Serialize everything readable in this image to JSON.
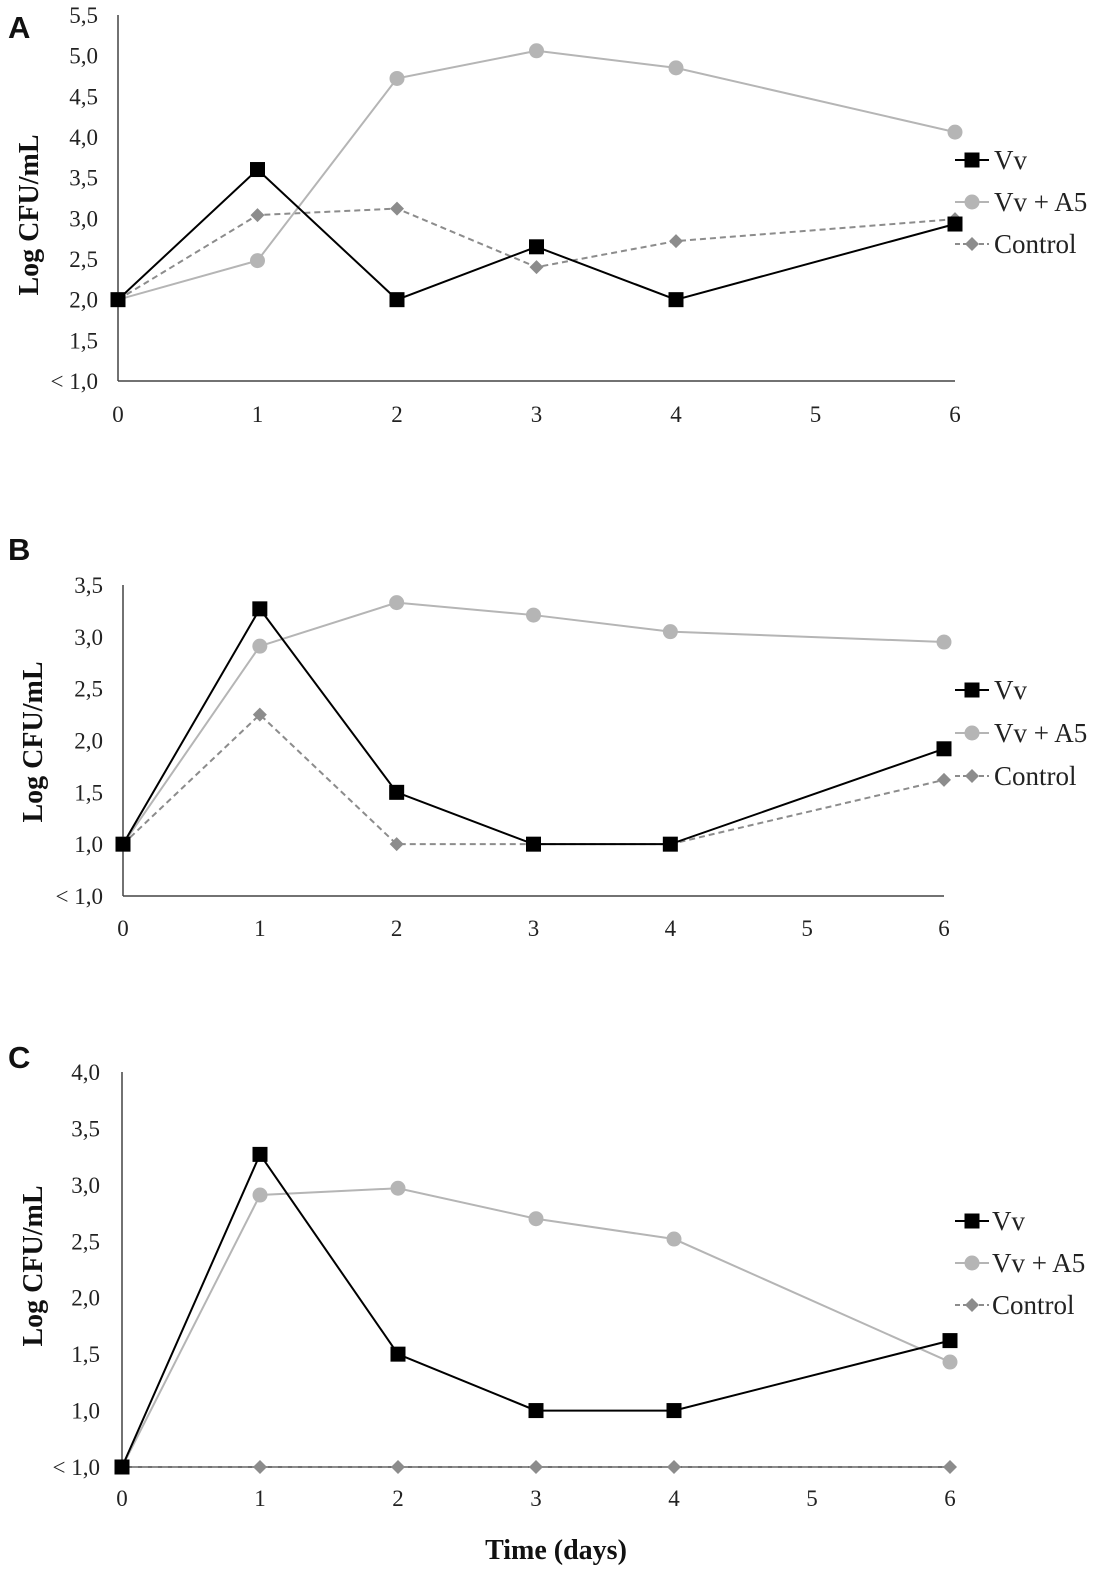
{
  "figure": {
    "xlabel": "Time (days)",
    "colors": {
      "vv": "#000000",
      "vv_a5": "#b5b5b5",
      "control": "#8c8c8c",
      "axis": "#444444"
    }
  },
  "chart_data": [
    {
      "type": "line",
      "panel": "A",
      "ylabel": "Log CFU/mL",
      "x_ticks": [
        "0",
        "1",
        "2",
        "3",
        "4",
        "5",
        "6"
      ],
      "y_ticks": [
        "< 1,0",
        "1,5",
        "2,0",
        "2,5",
        "3,0",
        "3,5",
        "4,0",
        "4,5",
        "5,0",
        "5,5"
      ],
      "xlim": [
        0,
        6
      ],
      "ylim": [
        1.0,
        5.5
      ],
      "legend_position": "right",
      "series": [
        {
          "name": "Vv",
          "marker": "square",
          "dashed": false,
          "x": [
            0,
            1,
            2,
            3,
            4,
            6
          ],
          "values": [
            2.0,
            3.6,
            2.0,
            2.65,
            2.0,
            2.93
          ]
        },
        {
          "name": "Vv + A5",
          "marker": "circle",
          "dashed": false,
          "x": [
            0,
            1,
            2,
            3,
            4,
            6
          ],
          "values": [
            2.0,
            2.48,
            4.72,
            5.06,
            4.85,
            4.06
          ]
        },
        {
          "name": "Control",
          "marker": "diamond",
          "dashed": true,
          "x": [
            0,
            1,
            2,
            3,
            4,
            6
          ],
          "values": [
            2.0,
            3.04,
            3.12,
            2.4,
            2.72,
            2.99
          ]
        }
      ]
    },
    {
      "type": "line",
      "panel": "B",
      "ylabel": "Log CFU/mL",
      "x_ticks": [
        "0",
        "1",
        "2",
        "3",
        "4",
        "5",
        "6"
      ],
      "y_ticks": [
        "< 1,0",
        "1,0",
        "1,5",
        "2,0",
        "2,5",
        "3,0",
        "3,5"
      ],
      "xlim": [
        0,
        6
      ],
      "ylim": [
        0.5,
        3.5
      ],
      "legend_position": "right",
      "series": [
        {
          "name": "Vv",
          "marker": "square",
          "dashed": false,
          "x": [
            0,
            1,
            2,
            3,
            4,
            6
          ],
          "values": [
            1.0,
            3.27,
            1.5,
            1.0,
            1.0,
            1.92
          ]
        },
        {
          "name": "Vv + A5",
          "marker": "circle",
          "dashed": false,
          "x": [
            0,
            1,
            2,
            3,
            4,
            6
          ],
          "values": [
            1.0,
            2.91,
            3.33,
            3.21,
            3.05,
            2.95
          ]
        },
        {
          "name": "Control",
          "marker": "diamond",
          "dashed": true,
          "x": [
            0,
            1,
            2,
            3,
            4,
            6
          ],
          "values": [
            1.0,
            2.25,
            1.0,
            1.0,
            1.0,
            1.62
          ]
        }
      ]
    },
    {
      "type": "line",
      "panel": "C",
      "ylabel": "Log CFU/mL",
      "x_ticks": [
        "0",
        "1",
        "2",
        "3",
        "4",
        "5",
        "6"
      ],
      "y_ticks": [
        "< 1,0",
        "1,0",
        "1,5",
        "2,0",
        "2,5",
        "3,0",
        "3,5",
        "4,0"
      ],
      "xlim": [
        0,
        6
      ],
      "ylim": [
        0.5,
        4.0
      ],
      "legend_position": "right",
      "series": [
        {
          "name": "Vv",
          "marker": "square",
          "dashed": false,
          "x": [
            0,
            1,
            2,
            3,
            4,
            6
          ],
          "values": [
            0.5,
            3.27,
            1.5,
            1.0,
            1.0,
            1.62
          ]
        },
        {
          "name": "Vv + A5",
          "marker": "circle",
          "dashed": false,
          "x": [
            0,
            1,
            2,
            3,
            4,
            6
          ],
          "values": [
            0.5,
            2.91,
            2.97,
            2.7,
            2.52,
            1.43
          ]
        },
        {
          "name": "Control",
          "marker": "diamond",
          "dashed": true,
          "x": [
            0,
            1,
            2,
            3,
            4,
            6
          ],
          "values": [
            0.5,
            0.5,
            0.5,
            0.5,
            0.5,
            0.5
          ]
        }
      ]
    }
  ]
}
